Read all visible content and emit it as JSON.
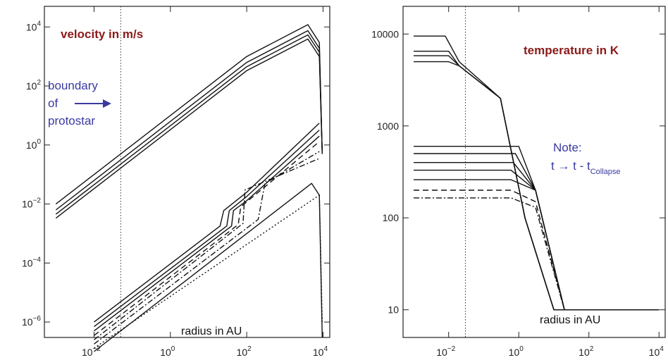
{
  "colors": {
    "annotation_red": "#8b1a1a",
    "annotation_blue": "#3a3aa0",
    "curve": "#111111"
  },
  "chart_data": [
    {
      "type": "line",
      "title": "velocity in m/s",
      "xlabel": "radius in AU",
      "ylabel": "",
      "xscale": "log",
      "yscale": "log",
      "xlim": [
        0.0005,
        15000
      ],
      "ylim": [
        3e-07,
        50000
      ],
      "x_ticks": [
        {
          "v": 0.01,
          "base": "10",
          "exp": "−2"
        },
        {
          "v": 1,
          "base": "10",
          "exp": "0"
        },
        {
          "v": 100,
          "base": "10",
          "exp": "2"
        },
        {
          "v": 10000,
          "base": "10",
          "exp": "4"
        }
      ],
      "y_ticks": [
        {
          "v": 1e-06,
          "base": "10",
          "exp": "−6"
        },
        {
          "v": 0.0001,
          "base": "10",
          "exp": "−4"
        },
        {
          "v": 0.01,
          "base": "10",
          "exp": "−2"
        },
        {
          "v": 1,
          "base": "10",
          "exp": "0"
        },
        {
          "v": 100,
          "base": "10",
          "exp": "2"
        },
        {
          "v": 10000,
          "base": "10",
          "exp": "4"
        }
      ],
      "annotation": {
        "line1": "boundary",
        "line2": "of",
        "line3": "protostar"
      },
      "boundary_x": 0.05,
      "series": [
        {
          "style": "solid",
          "points": [
            [
              0.001,
              0.01
            ],
            [
              100,
              1000
            ],
            [
              4000,
              12000
            ],
            [
              8000,
              3000
            ],
            [
              9500,
              0.5
            ]
          ]
        },
        {
          "style": "solid",
          "points": [
            [
              0.001,
              0.0063
            ],
            [
              100,
              630
            ],
            [
              4000,
              7500
            ],
            [
              8000,
              1900
            ],
            [
              9500,
              0.5
            ]
          ]
        },
        {
          "style": "solid",
          "points": [
            [
              0.001,
              0.0045
            ],
            [
              100,
              450
            ],
            [
              4000,
              5400
            ],
            [
              8000,
              1400
            ],
            [
              9500,
              0.5
            ]
          ]
        },
        {
          "style": "solid",
          "points": [
            [
              0.001,
              0.0033
            ],
            [
              100,
              330
            ],
            [
              4000,
              3900
            ],
            [
              8000,
              1000
            ],
            [
              9500,
              0.5
            ]
          ]
        },
        {
          "style": "solid",
          "points": [
            [
              0.01,
              1e-06
            ],
            [
              20,
              0.0018
            ],
            [
              25,
              0.006
            ],
            [
              100,
              0.025
            ],
            [
              8000,
              5.5
            ]
          ]
        },
        {
          "style": "solid",
          "points": [
            [
              0.01,
              7e-07
            ],
            [
              30,
              0.0018
            ],
            [
              35,
              0.006
            ],
            [
              100,
              0.018
            ],
            [
              8000,
              3.2
            ]
          ]
        },
        {
          "style": "solid",
          "points": [
            [
              0.01,
              5e-07
            ],
            [
              40,
              0.0018
            ],
            [
              45,
              0.006
            ],
            [
              100,
              0.013
            ],
            [
              8000,
              2.0
            ]
          ]
        },
        {
          "style": "dashed",
          "points": [
            [
              0.01,
              3.5e-07
            ],
            [
              60,
              0.002
            ],
            [
              70,
              0.008
            ],
            [
              8000,
              1.3
            ]
          ]
        },
        {
          "style": "dashdot",
          "points": [
            [
              0.01,
              2.5e-07
            ],
            [
              80,
              0.0022
            ],
            [
              90,
              0.03
            ],
            [
              8000,
              0.35
            ]
          ]
        },
        {
          "style": "dashdot",
          "points": [
            [
              0.01,
              1.8e-07
            ],
            [
              200,
              0.003
            ],
            [
              300,
              0.05
            ],
            [
              8000,
              0.6
            ]
          ]
        },
        {
          "style": "dotted",
          "points": [
            [
              0.01,
              1.3e-07
            ],
            [
              8000,
              0.02
            ],
            [
              9500,
              1e-06
            ]
          ]
        },
        {
          "style": "solid",
          "points": [
            [
              0.01,
              1e-07
            ],
            [
              5000,
              0.05
            ],
            [
              8000,
              0.02
            ],
            [
              9500,
              3e-07
            ]
          ]
        }
      ]
    },
    {
      "type": "line",
      "title": "temperature in K",
      "xlabel": "radius in AU",
      "ylabel": "",
      "xscale": "log",
      "yscale": "log",
      "xlim": [
        0.0005,
        15000
      ],
      "ylim": [
        5,
        20000
      ],
      "x_ticks": [
        {
          "v": 0.01,
          "base": "10",
          "exp": "−2"
        },
        {
          "v": 1,
          "base": "10",
          "exp": "0"
        },
        {
          "v": 100,
          "base": "10",
          "exp": "2"
        },
        {
          "v": 10000,
          "base": "10",
          "exp": "4"
        }
      ],
      "y_ticks": [
        {
          "v": 10,
          "label": "10"
        },
        {
          "v": 100,
          "label": "100"
        },
        {
          "v": 1000,
          "label": "1000"
        },
        {
          "v": 10000,
          "label": "10000"
        }
      ],
      "note": {
        "line1": "Note:",
        "line2": "t → t - t",
        "subscript": "Collapse"
      },
      "boundary_x": 0.03,
      "series": [
        {
          "style": "solid",
          "points": [
            [
              0.001,
              9500
            ],
            [
              0.008,
              9500
            ],
            [
              0.02,
              5000
            ],
            [
              0.3,
              2000
            ],
            [
              1.5,
              100
            ],
            [
              10,
              10
            ],
            [
              10000,
              10
            ]
          ]
        },
        {
          "style": "solid",
          "points": [
            [
              0.001,
              6500
            ],
            [
              0.01,
              6500
            ],
            [
              0.02,
              4500
            ],
            [
              0.3,
              2000
            ],
            [
              1.5,
              100
            ],
            [
              10,
              10
            ],
            [
              10000,
              10
            ]
          ]
        },
        {
          "style": "solid",
          "points": [
            [
              0.001,
              5800
            ],
            [
              0.01,
              5800
            ],
            [
              0.02,
              4500
            ],
            [
              0.3,
              2000
            ],
            [
              1.5,
              100
            ],
            [
              10,
              10
            ],
            [
              10000,
              10
            ]
          ]
        },
        {
          "style": "solid",
          "points": [
            [
              0.001,
              5000
            ],
            [
              0.01,
              5000
            ],
            [
              0.02,
              4500
            ],
            [
              0.3,
              2000
            ],
            [
              1.5,
              100
            ],
            [
              10,
              10
            ],
            [
              10000,
              10
            ]
          ]
        },
        {
          "style": "solid",
          "points": [
            [
              0.001,
              600
            ],
            [
              1,
              600
            ],
            [
              3,
              200
            ],
            [
              20,
              10
            ],
            [
              10000,
              10
            ]
          ]
        },
        {
          "style": "solid",
          "points": [
            [
              0.001,
              500
            ],
            [
              0.8,
              500
            ],
            [
              3,
              200
            ],
            [
              20,
              10
            ],
            [
              10000,
              10
            ]
          ]
        },
        {
          "style": "solid",
          "points": [
            [
              0.001,
              400
            ],
            [
              0.7,
              400
            ],
            [
              3,
              200
            ],
            [
              20,
              10
            ],
            [
              10000,
              10
            ]
          ]
        },
        {
          "style": "solid",
          "points": [
            [
              0.001,
              330
            ],
            [
              0.6,
              330
            ],
            [
              3,
              200
            ],
            [
              20,
              10
            ],
            [
              10000,
              10
            ]
          ]
        },
        {
          "style": "solid",
          "points": [
            [
              0.001,
              260
            ],
            [
              0.6,
              260
            ],
            [
              3,
              200
            ],
            [
              20,
              10
            ],
            [
              10000,
              10
            ]
          ]
        },
        {
          "style": "dashed",
          "points": [
            [
              0.001,
              200
            ],
            [
              0.6,
              200
            ],
            [
              3,
              150
            ],
            [
              20,
              10
            ],
            [
              10000,
              10
            ]
          ]
        },
        {
          "style": "dashdot",
          "points": [
            [
              0.001,
              165
            ],
            [
              0.6,
              165
            ],
            [
              3,
              130
            ],
            [
              20,
              10
            ],
            [
              10000,
              10
            ]
          ]
        }
      ]
    }
  ]
}
